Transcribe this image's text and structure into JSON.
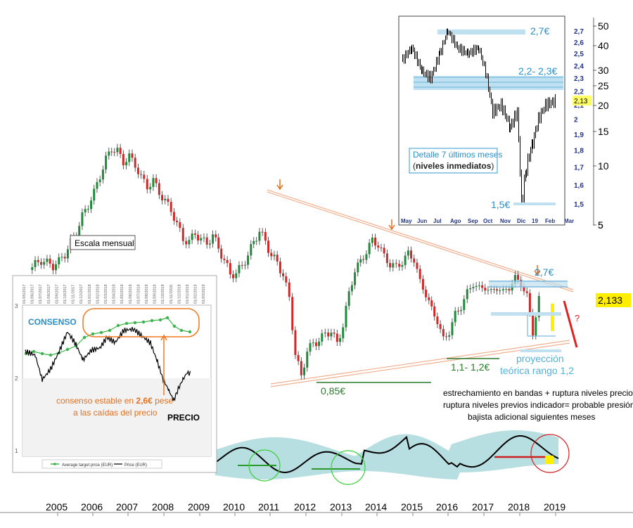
{
  "chart_data": [
    {
      "type": "candlestick",
      "scale": "log",
      "x_ticks": [
        "2005",
        "2006",
        "2007",
        "2008",
        "2009",
        "2010",
        "2011",
        "2012",
        "2013",
        "2014",
        "2015",
        "2016",
        "2017",
        "2018",
        "2019"
      ],
      "y_ticks": [
        "5"
      ],
      "last_price_label": "2,133",
      "monthly_close": [
        [
          "2004-10",
          3.0
        ],
        [
          "2004-12",
          3.2
        ],
        [
          "2005-02",
          3.35
        ],
        [
          "2005-04",
          3.25
        ],
        [
          "2005-06",
          3.15
        ],
        [
          "2005-08",
          3.3
        ],
        [
          "2005-10",
          3.6
        ],
        [
          "2005-12",
          4.1
        ],
        [
          "2006-02",
          4.6
        ],
        [
          "2006-04",
          5.5
        ],
        [
          "2006-06",
          6.3
        ],
        [
          "2006-08",
          7.2
        ],
        [
          "2006-10",
          8.8
        ],
        [
          "2006-12",
          10.5
        ],
        [
          "2007-02",
          12.0
        ],
        [
          "2007-04",
          11.5
        ],
        [
          "2007-06",
          10.3
        ],
        [
          "2007-08",
          10.8
        ],
        [
          "2007-10",
          10.0
        ],
        [
          "2007-12",
          8.5
        ],
        [
          "2008-02",
          7.8
        ],
        [
          "2008-04",
          8.2
        ],
        [
          "2008-06",
          7.3
        ],
        [
          "2008-08",
          6.5
        ],
        [
          "2008-10",
          6.0
        ],
        [
          "2008-12",
          5.0
        ],
        [
          "2009-02",
          4.3
        ],
        [
          "2009-04",
          4.1
        ],
        [
          "2009-06",
          4.6
        ],
        [
          "2009-08",
          4.2
        ],
        [
          "2009-10",
          4.1
        ],
        [
          "2009-12",
          4.4
        ],
        [
          "2010-02",
          3.9
        ],
        [
          "2010-04",
          3.3
        ],
        [
          "2010-06",
          2.9
        ],
        [
          "2010-08",
          2.85
        ],
        [
          "2010-10",
          3.2
        ],
        [
          "2010-12",
          3.5
        ],
        [
          "2011-02",
          4.2
        ],
        [
          "2011-04",
          4.6
        ],
        [
          "2011-06",
          4.2
        ],
        [
          "2011-08",
          3.5
        ],
        [
          "2011-10",
          3.3
        ],
        [
          "2011-12",
          2.8
        ],
        [
          "2012-02",
          2.2
        ],
        [
          "2012-04",
          1.15
        ],
        [
          "2012-06",
          0.9
        ],
        [
          "2012-08",
          1.2
        ],
        [
          "2012-10",
          1.3
        ],
        [
          "2012-12",
          1.35
        ],
        [
          "2013-02",
          1.45
        ],
        [
          "2013-04",
          1.5
        ],
        [
          "2013-06",
          1.3
        ],
        [
          "2013-08",
          1.6
        ],
        [
          "2013-10",
          2.3
        ],
        [
          "2013-12",
          3.0
        ],
        [
          "2014-02",
          3.3
        ],
        [
          "2014-04",
          3.7
        ],
        [
          "2014-06",
          4.2
        ],
        [
          "2014-08",
          4.0
        ],
        [
          "2014-10",
          3.5
        ],
        [
          "2014-12",
          3.2
        ],
        [
          "2015-02",
          3.1
        ],
        [
          "2015-04",
          3.3
        ],
        [
          "2015-06",
          3.6
        ],
        [
          "2015-08",
          3.4
        ],
        [
          "2015-10",
          2.6
        ],
        [
          "2015-12",
          2.3
        ],
        [
          "2016-02",
          1.9
        ],
        [
          "2016-04",
          1.7
        ],
        [
          "2016-06",
          1.35
        ],
        [
          "2016-08",
          1.5
        ],
        [
          "2016-10",
          1.8
        ],
        [
          "2016-12",
          2.0
        ],
        [
          "2017-02",
          2.3
        ],
        [
          "2017-04",
          2.6
        ],
        [
          "2017-06",
          2.4
        ],
        [
          "2017-08",
          2.5
        ],
        [
          "2017-10",
          2.3
        ],
        [
          "2017-12",
          2.5
        ],
        [
          "2018-02",
          2.3
        ],
        [
          "2018-04",
          2.5
        ],
        [
          "2018-06",
          2.7
        ],
        [
          "2018-08",
          2.6
        ],
        [
          "2018-10",
          2.2
        ],
        [
          "2018-12",
          1.5
        ],
        [
          "2019-02",
          2.13
        ]
      ],
      "annotations": {
        "scale_label": "Escala mensual",
        "level_27": "2,7€",
        "level_085": "0,85€",
        "level_11_12": "1,1- 1,2€",
        "projection_line1": "proyección",
        "projection_line2": "teórica rango 1,2",
        "question": "?",
        "note_line1": "estrechamiento en bandas + ruptura niveles precio+",
        "note_line2": "ruptura niveles previos indicador= probable presión",
        "note_line3": "bajista adicional siguientes meses"
      }
    },
    {
      "type": "candlestick",
      "title": "Detalle 7 últimos meses",
      "title2": "niveles inmediatos",
      "x_ticks": [
        "May",
        "Jun",
        "Jul",
        "Ago",
        "Sep",
        "Oct",
        "Nov",
        "Dic",
        "19",
        "Feb",
        "Mar"
      ],
      "y_ticks_left": [
        "2,7",
        "2,6",
        "2,5",
        "2,4",
        "2,3",
        "2,2",
        "2,1",
        "2",
        "1,9",
        "1,8",
        "1,7",
        "1,6",
        "1,5"
      ],
      "y_ticks_right": [
        "50",
        "40",
        "30",
        "25",
        "20",
        "15",
        "10",
        "5"
      ],
      "last_value": "2,13",
      "levels": {
        "top": "2,7€",
        "mid": "2,2- 2,3€",
        "bottom": "1,5€"
      }
    },
    {
      "type": "line",
      "series": [
        {
          "name": "Average target price (EUR)"
        },
        {
          "name": "Price (EUR)"
        }
      ],
      "y_ticks": [
        "3",
        "2",
        "1"
      ],
      "x_ticks": [
        "01/05/2017",
        "01/06/2017",
        "01/07/2017",
        "01/08/2017",
        "01/09/2017",
        "01/10/2017",
        "01/11/2017",
        "01/12/2017",
        "01/01/2018",
        "01/02/2018",
        "01/03/2018",
        "01/04/2018",
        "01/05/2018",
        "01/06/2018",
        "01/07/2018",
        "01/08/2018",
        "01/09/2018",
        "01/10/2018",
        "01/11/2018",
        "01/12/2018",
        "01/01/2019",
        "01/02/2019",
        "01/03/2019"
      ],
      "labels": {
        "consenso": "CONSENSO",
        "precio": "PRECIO",
        "note_a": "consenso estable en ",
        "note_b": "2,6€",
        "note_c": " pese",
        "note_d": "a las caídas del precio"
      }
    }
  ]
}
